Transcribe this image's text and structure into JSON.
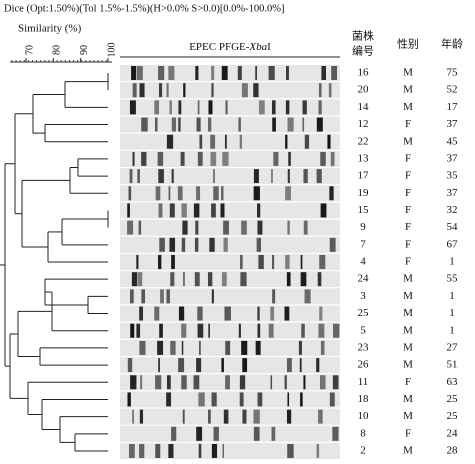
{
  "header": {
    "text": "Dice (Opt:1.50%)(Tol 1.5%-1.5%)(H>0.0% S>0.0)[0.0%-100.0%]"
  },
  "scale": {
    "title": "Similarity (%)",
    "ticks": [
      70,
      80,
      90,
      100
    ]
  },
  "gel": {
    "title": [
      "EPEC PFGE-",
      "Xba",
      "I"
    ]
  },
  "columns": [
    [
      "菌株",
      "编号"
    ],
    "性别",
    "年龄"
  ],
  "rows": [
    [
      "16",
      "M",
      "75"
    ],
    [
      "20",
      "M",
      "52"
    ],
    [
      "14",
      "M",
      "17"
    ],
    [
      "12",
      "F",
      "37"
    ],
    [
      "22",
      "M",
      "45"
    ],
    [
      "13",
      "F",
      "37"
    ],
    [
      "17",
      "F",
      "35"
    ],
    [
      "19",
      "F",
      "37"
    ],
    [
      "15",
      "F",
      "32"
    ],
    [
      "9",
      "F",
      "54"
    ],
    [
      "7",
      "F",
      "67"
    ],
    [
      "4",
      "F",
      "1"
    ],
    [
      "24",
      "M",
      "55"
    ],
    [
      "3",
      "M",
      "1"
    ],
    [
      "25",
      "M",
      "1"
    ],
    [
      "5",
      "M",
      "1"
    ],
    [
      "23",
      "M",
      "27"
    ],
    [
      "26",
      "M",
      "51"
    ],
    [
      "11",
      "F",
      "63"
    ],
    [
      "18",
      "M",
      "25"
    ],
    [
      "10",
      "M",
      "25"
    ],
    [
      "8",
      "F",
      "24"
    ],
    [
      "2",
      "M",
      "28"
    ]
  ]
}
